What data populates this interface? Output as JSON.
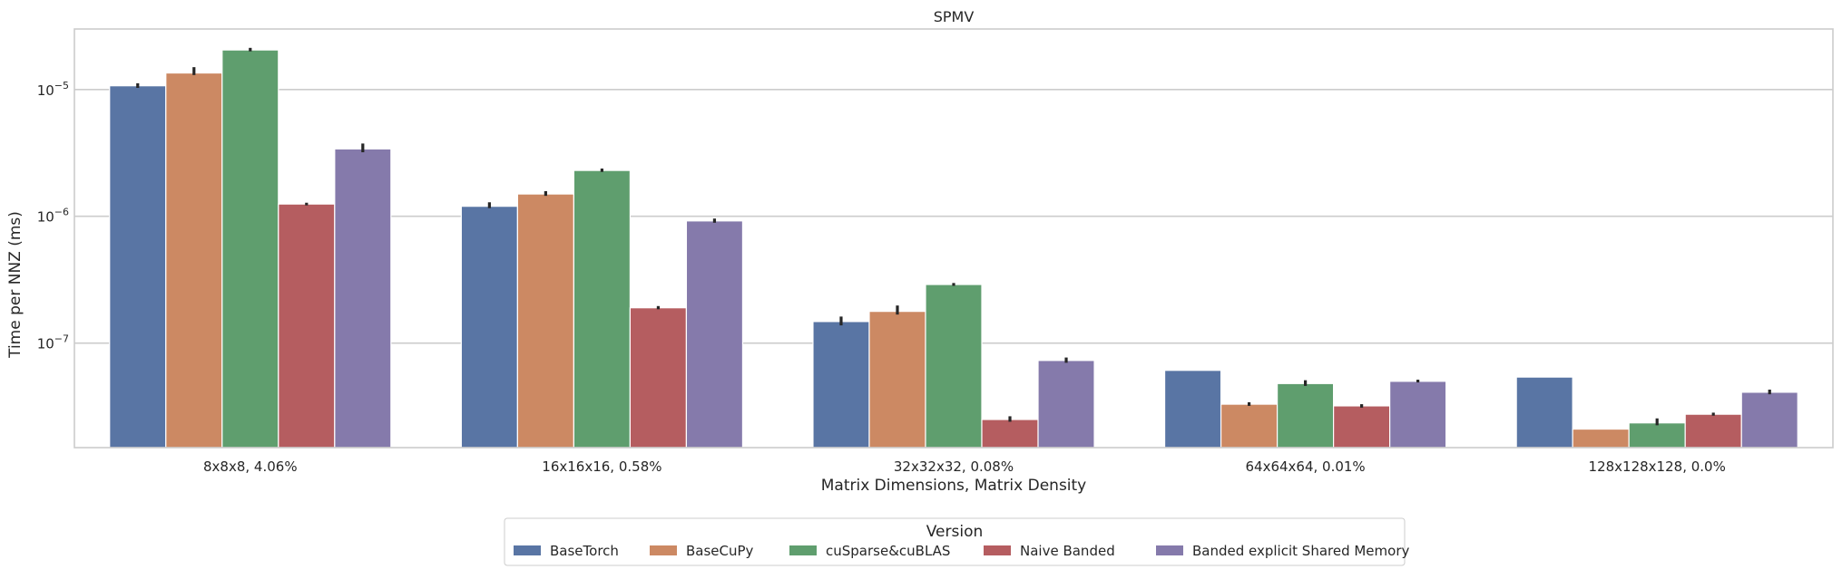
{
  "chart_data": {
    "type": "bar",
    "title": "SPMV",
    "xlabel": "Matrix Dimensions, Matrix Density",
    "ylabel": "Time per NNZ (ms)",
    "y_scale": "log",
    "ylim": [
      1.5e-08,
      3e-05
    ],
    "y_ticks": [
      {
        "value": 1e-07,
        "mantissa": "10",
        "exp": "−7"
      },
      {
        "value": 1e-06,
        "mantissa": "10",
        "exp": "−6"
      },
      {
        "value": 1e-05,
        "mantissa": "10",
        "exp": "−5"
      }
    ],
    "grid": true,
    "categories": [
      "8x8x8, 4.06%",
      "16x16x16, 0.58%",
      "32x32x32, 0.08%",
      "64x64x64, 0.01%",
      "128x128x128, 0.0%"
    ],
    "legend": {
      "title": "Version",
      "placement": "bottom-center"
    },
    "series": [
      {
        "name": "BaseTorch",
        "color": "#5975a4",
        "values": [
          1.07e-05,
          1.2e-06,
          1.48e-07,
          6.1e-08,
          5.4e-08
        ],
        "err_low": [
          1.03e-05,
          1.16e-06,
          1.38e-07,
          null,
          null
        ],
        "err_high": [
          1.12e-05,
          1.29e-06,
          1.62e-07,
          null,
          null
        ]
      },
      {
        "name": "BaseCuPy",
        "color": "#cc8963",
        "values": [
          1.35e-05,
          1.5e-06,
          1.78e-07,
          3.3e-08,
          2.1e-08
        ],
        "err_low": [
          1.3e-05,
          1.45e-06,
          1.68e-07,
          3.2e-08,
          null
        ],
        "err_high": [
          1.5e-05,
          1.58e-06,
          1.98e-07,
          3.42e-08,
          null
        ]
      },
      {
        "name": "cuSparse&cuBLAS",
        "color": "#5f9e6e",
        "values": [
          2.05e-05,
          2.3e-06,
          2.9e-07,
          4.8e-08,
          2.35e-08
        ],
        "err_low": [
          2e-05,
          2.24e-06,
          2.83e-07,
          4.6e-08,
          2.25e-08
        ],
        "err_high": [
          2.13e-05,
          2.38e-06,
          2.98e-07,
          5.1e-08,
          2.55e-08
        ]
      },
      {
        "name": "Naive Banded",
        "color": "#b55d60",
        "values": [
          1.25e-06,
          1.9e-07,
          2.5e-08,
          3.2e-08,
          2.75e-08
        ],
        "err_low": [
          1.22e-06,
          1.85e-07,
          2.4e-08,
          3.1e-08,
          2.68e-08
        ],
        "err_high": [
          1.28e-06,
          1.96e-07,
          2.65e-08,
          3.3e-08,
          2.83e-08
        ]
      },
      {
        "name": "Banded explicit Shared Memory",
        "color": "#857aab",
        "values": [
          3.4e-06,
          9.2e-07,
          7.3e-08,
          5e-08,
          4.1e-08
        ],
        "err_low": [
          3.2e-06,
          8.9e-07,
          7e-08,
          4.9e-08,
          3.95e-08
        ],
        "err_high": [
          3.75e-06,
          9.6e-07,
          7.7e-08,
          5.15e-08,
          4.3e-08
        ]
      }
    ]
  }
}
